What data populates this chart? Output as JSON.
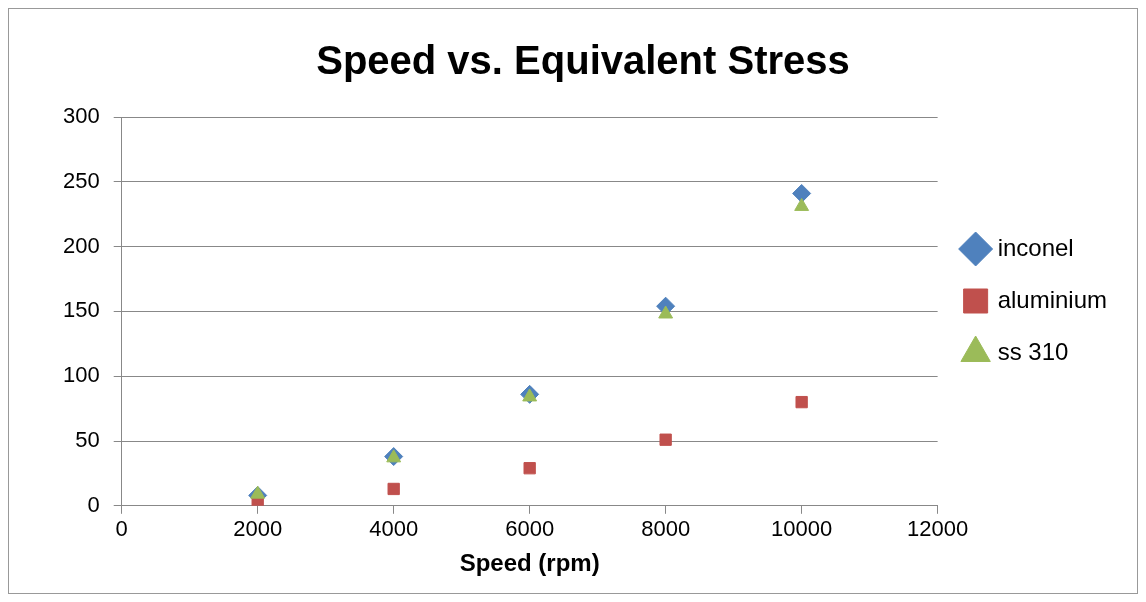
{
  "chart_data": {
    "type": "scatter",
    "title": "Speed vs. Equivalent Stress",
    "xlabel": "Speed (rpm)",
    "x": [
      2000,
      4000,
      6000,
      8000,
      10000
    ],
    "series": [
      {
        "name": "inconel",
        "color": "#4f81bd",
        "marker": "diamond",
        "values": [
          8,
          38,
          86,
          154,
          241
        ]
      },
      {
        "name": "aluminium",
        "color": "#c0504d",
        "marker": "square",
        "values": [
          3,
          13,
          29,
          51,
          80
        ]
      },
      {
        "name": "ss 310",
        "color": "#9bbb59",
        "marker": "triangle",
        "values": [
          9,
          37,
          84,
          148,
          231
        ]
      }
    ],
    "xlim": [
      0,
      12000
    ],
    "xticks": [
      0,
      2000,
      4000,
      6000,
      8000,
      10000,
      12000
    ],
    "ylim": [
      0,
      300
    ],
    "yticks": [
      0,
      50,
      100,
      150,
      200,
      250,
      300
    ],
    "grid": "y",
    "legend": "right"
  }
}
